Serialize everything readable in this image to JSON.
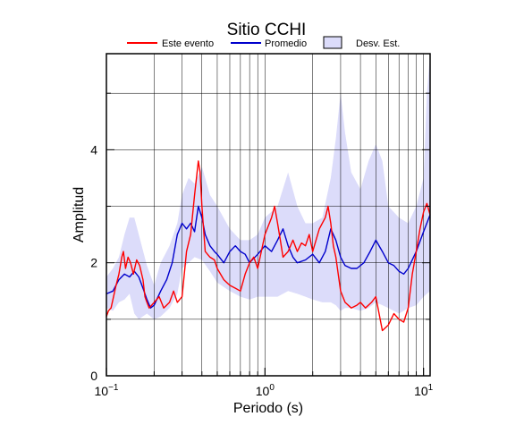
{
  "chart_data": {
    "type": "line",
    "title": "Sitio CCHI",
    "xlabel": "Periodo (s)",
    "ylabel": "Amplitud",
    "x_scale": "log",
    "xlim": [
      0.1,
      11
    ],
    "ylim": [
      0,
      5.7
    ],
    "x_ticks": [
      {
        "value": 0.1,
        "base": "10",
        "exp": "−1"
      },
      {
        "value": 1,
        "base": "10",
        "exp": "0"
      },
      {
        "value": 10,
        "base": "10",
        "exp": "1"
      }
    ],
    "y_ticks": [
      0,
      2,
      4
    ],
    "grid": true,
    "legend": {
      "position": "top",
      "items": [
        {
          "key": "event",
          "label": "Este evento"
        },
        {
          "key": "mean",
          "label": "Promedio"
        },
        {
          "key": "band",
          "label": "Desv. Est."
        }
      ]
    },
    "colors": {
      "event": "#ff0000",
      "mean": "#0000cc",
      "band": "#dcdcfa",
      "band_edge": "#000000"
    },
    "series": [
      {
        "key": "event",
        "name": "Este evento",
        "x": [
          0.1,
          0.103,
          0.107,
          0.11,
          0.115,
          0.12,
          0.125,
          0.128,
          0.132,
          0.137,
          0.142,
          0.148,
          0.155,
          0.162,
          0.17,
          0.175,
          0.18,
          0.186,
          0.193,
          0.2,
          0.215,
          0.23,
          0.25,
          0.265,
          0.28,
          0.3,
          0.32,
          0.34,
          0.36,
          0.38,
          0.39,
          0.4,
          0.42,
          0.45,
          0.48,
          0.5,
          0.55,
          0.6,
          0.65,
          0.7,
          0.75,
          0.8,
          0.85,
          0.9,
          1.0,
          1.1,
          1.15,
          1.2,
          1.25,
          1.3,
          1.4,
          1.5,
          1.6,
          1.7,
          1.8,
          1.9,
          2.0,
          2.2,
          2.4,
          2.5,
          2.6,
          2.7,
          2.8,
          3.0,
          3.2,
          3.5,
          3.8,
          4.0,
          4.3,
          4.7,
          5.0,
          5.5,
          6.0,
          6.5,
          7.0,
          7.5,
          8.0,
          8.5,
          9.0,
          9.5,
          10.0,
          10.5,
          11.0
        ],
        "y": [
          1.05,
          1.15,
          1.2,
          1.35,
          1.6,
          1.8,
          2.1,
          2.2,
          1.9,
          2.1,
          2.0,
          1.8,
          2.05,
          1.95,
          1.7,
          1.4,
          1.3,
          1.2,
          1.25,
          1.3,
          1.4,
          1.2,
          1.3,
          1.5,
          1.3,
          1.4,
          2.2,
          2.5,
          3.2,
          3.8,
          3.6,
          3.0,
          2.2,
          2.1,
          2.05,
          1.9,
          1.7,
          1.6,
          1.55,
          1.5,
          1.8,
          2.0,
          2.1,
          1.9,
          2.5,
          2.8,
          3.0,
          2.7,
          2.4,
          2.1,
          2.2,
          2.4,
          2.2,
          2.35,
          2.3,
          2.5,
          2.2,
          2.6,
          2.8,
          3.0,
          2.7,
          2.3,
          2.1,
          1.5,
          1.3,
          1.2,
          1.25,
          1.3,
          1.2,
          1.3,
          1.4,
          0.8,
          0.9,
          1.1,
          1.0,
          0.95,
          1.2,
          1.8,
          2.2,
          2.6,
          2.9,
          3.05,
          2.85
        ]
      },
      {
        "key": "mean",
        "name": "Promedio",
        "x": [
          0.1,
          0.11,
          0.12,
          0.13,
          0.14,
          0.15,
          0.16,
          0.17,
          0.18,
          0.19,
          0.2,
          0.22,
          0.24,
          0.26,
          0.28,
          0.3,
          0.32,
          0.34,
          0.36,
          0.38,
          0.4,
          0.42,
          0.45,
          0.48,
          0.5,
          0.55,
          0.6,
          0.65,
          0.7,
          0.75,
          0.8,
          0.9,
          1.0,
          1.1,
          1.2,
          1.3,
          1.4,
          1.5,
          1.6,
          1.8,
          2.0,
          2.2,
          2.4,
          2.6,
          2.8,
          3.0,
          3.2,
          3.5,
          3.8,
          4.2,
          4.6,
          5.0,
          5.5,
          6.0,
          6.5,
          7.0,
          7.5,
          8.0,
          9.0,
          10.0,
          11.0
        ],
        "y": [
          1.45,
          1.5,
          1.7,
          1.8,
          1.75,
          1.85,
          1.75,
          1.55,
          1.35,
          1.2,
          1.25,
          1.5,
          1.7,
          2.0,
          2.5,
          2.7,
          2.6,
          2.7,
          2.55,
          3.0,
          2.8,
          2.5,
          2.3,
          2.2,
          2.15,
          2.0,
          2.2,
          2.3,
          2.2,
          2.15,
          2.0,
          2.15,
          2.3,
          2.2,
          2.4,
          2.6,
          2.3,
          2.1,
          2.0,
          2.05,
          2.15,
          2.0,
          2.2,
          2.6,
          2.4,
          2.1,
          1.95,
          1.9,
          1.9,
          2.0,
          2.2,
          2.4,
          2.2,
          2.0,
          1.95,
          1.85,
          1.8,
          1.9,
          2.2,
          2.55,
          2.85
        ]
      },
      {
        "key": "band_upper",
        "name": "Desv. Est.",
        "x": [
          0.1,
          0.11,
          0.12,
          0.13,
          0.14,
          0.15,
          0.16,
          0.18,
          0.2,
          0.22,
          0.25,
          0.28,
          0.3,
          0.33,
          0.36,
          0.4,
          0.45,
          0.5,
          0.6,
          0.7,
          0.8,
          0.9,
          1.0,
          1.2,
          1.4,
          1.6,
          1.8,
          2.0,
          2.3,
          2.6,
          2.8,
          3.0,
          3.2,
          3.5,
          4.0,
          4.5,
          5.0,
          5.5,
          6.0,
          7.0,
          8.0,
          9.0,
          10.0,
          10.5,
          11.0
        ],
        "y": [
          1.75,
          1.9,
          2.1,
          2.5,
          2.8,
          2.8,
          2.5,
          1.95,
          1.6,
          2.0,
          2.3,
          2.7,
          3.2,
          3.5,
          3.4,
          3.7,
          3.2,
          3.0,
          2.6,
          2.4,
          2.4,
          2.5,
          2.8,
          3.0,
          3.6,
          3.0,
          2.7,
          2.7,
          2.8,
          3.5,
          4.2,
          5.0,
          4.3,
          3.6,
          3.3,
          3.8,
          4.1,
          3.8,
          3.0,
          2.8,
          2.7,
          3.0,
          3.5,
          5.0,
          5.7
        ]
      },
      {
        "key": "band_lower",
        "name": "Desv. Est.",
        "x": [
          0.1,
          0.11,
          0.12,
          0.13,
          0.14,
          0.15,
          0.16,
          0.18,
          0.2,
          0.22,
          0.25,
          0.28,
          0.3,
          0.33,
          0.36,
          0.4,
          0.45,
          0.5,
          0.6,
          0.7,
          0.8,
          0.9,
          1.0,
          1.2,
          1.4,
          1.6,
          1.8,
          2.0,
          2.3,
          2.6,
          2.8,
          3.0,
          3.2,
          3.5,
          4.0,
          4.5,
          5.0,
          5.5,
          6.0,
          7.0,
          8.0,
          9.0,
          10.0,
          10.5,
          11.0
        ],
        "y": [
          1.2,
          1.15,
          1.3,
          1.35,
          1.45,
          1.1,
          1.0,
          1.1,
          1.0,
          1.05,
          1.2,
          1.45,
          1.9,
          2.0,
          2.1,
          2.05,
          1.85,
          1.65,
          1.5,
          1.4,
          1.35,
          1.4,
          1.4,
          1.4,
          1.5,
          1.45,
          1.4,
          1.35,
          1.3,
          1.3,
          1.25,
          1.15,
          1.2,
          1.2,
          1.15,
          1.2,
          1.3,
          1.25,
          1.2,
          1.1,
          1.2,
          1.25,
          1.4,
          1.45,
          1.5
        ]
      }
    ]
  }
}
